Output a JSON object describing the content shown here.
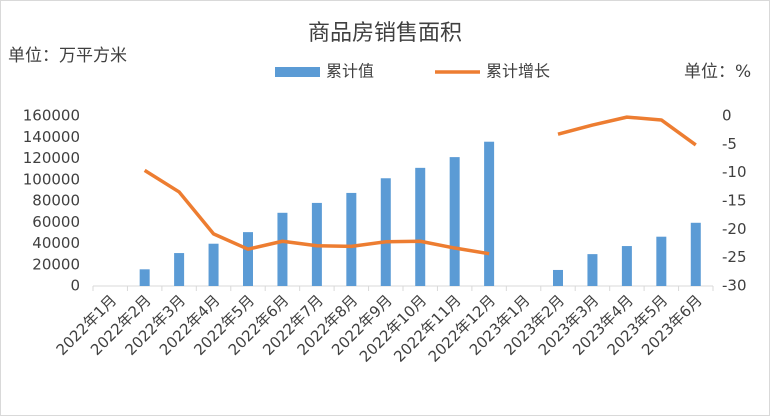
{
  "chart_data": {
    "type": "bar-line",
    "title": "商品房销售面积",
    "y_label": "单位：万平方米",
    "y2_label": "单位：%",
    "categories": [
      "2022年1月",
      "2022年2月",
      "2022年3月",
      "2022年4月",
      "2022年5月",
      "2022年6月",
      "2022年7月",
      "2022年8月",
      "2022年9月",
      "2022年10月",
      "2022年11月",
      "2022年12月",
      "2023年1月",
      "2023年2月",
      "2023年3月",
      "2023年4月",
      "2023年5月",
      "2023年6月"
    ],
    "series": [
      {
        "name": "累计值",
        "type": "bar",
        "color": "#5b9bd5",
        "values": [
          null,
          15700,
          31000,
          39800,
          50700,
          68900,
          78200,
          87600,
          101400,
          111200,
          121300,
          135800,
          null,
          15100,
          30000,
          37600,
          46400,
          59500
        ]
      },
      {
        "name": "累计增长",
        "type": "line",
        "axis": "y2",
        "color": "#ed7d31",
        "values": [
          null,
          -9.6,
          -13.4,
          -20.8,
          -23.5,
          -22.1,
          -22.9,
          -23.0,
          -22.2,
          -22.1,
          -23.3,
          -24.3,
          null,
          -3.2,
          -1.6,
          -0.2,
          -0.7,
          -5.1
        ]
      }
    ],
    "ylim": [
      0,
      160000
    ],
    "yticks": [
      0,
      20000,
      40000,
      60000,
      80000,
      100000,
      120000,
      140000,
      160000
    ],
    "y2lim": [
      -30,
      0
    ],
    "y2ticks": [
      -30,
      -25,
      -20,
      -15,
      -10,
      -5,
      0
    ],
    "legend": "top"
  }
}
